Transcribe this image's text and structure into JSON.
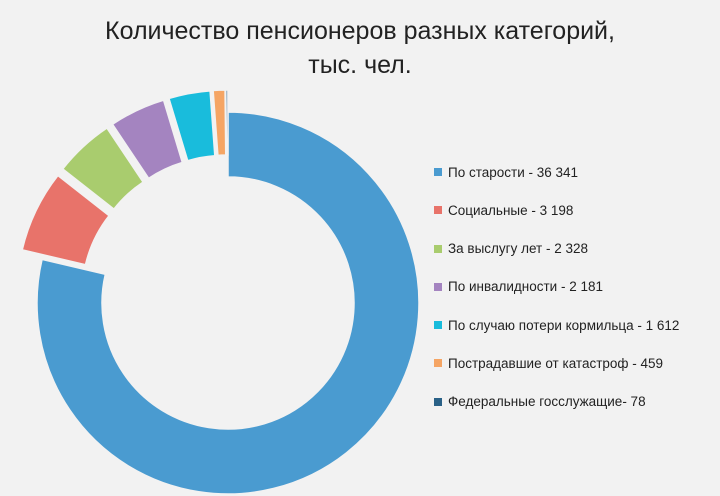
{
  "chart_data": {
    "type": "pie",
    "variant": "donut-exploded",
    "title_lines": [
      "Количество пенсионеров разных категорий,",
      "тыс. чел."
    ],
    "legend_position": "right",
    "slices": [
      {
        "label": "По старости - 36 341",
        "category": "По старости",
        "value": 36341,
        "color": "#4a9bd0"
      },
      {
        "label": "Социальные - 3 198",
        "category": "Социальные",
        "value": 3198,
        "color": "#e8736a"
      },
      {
        "label": "За выслугу лет - 2 328",
        "category": "За выслугу лет",
        "value": 2328,
        "color": "#a9cc6e"
      },
      {
        "label": "По инвалидности - 2 181",
        "category": "По инвалидности",
        "value": 2181,
        "color": "#a484c0"
      },
      {
        "label": "По случаю потери кормильца - 1 612",
        "category": "По случаю потери кормильца",
        "value": 1612,
        "color": "#19bcdc"
      },
      {
        "label": "Пострадавшие от катастроф - 459",
        "category": "Пострадавшие от катастроф",
        "value": 459,
        "color": "#f5a564"
      },
      {
        "label": "Федеральные госслужащие- 78",
        "category": "Федеральные госслужащие",
        "value": 78,
        "color": "#2a6187"
      }
    ]
  }
}
